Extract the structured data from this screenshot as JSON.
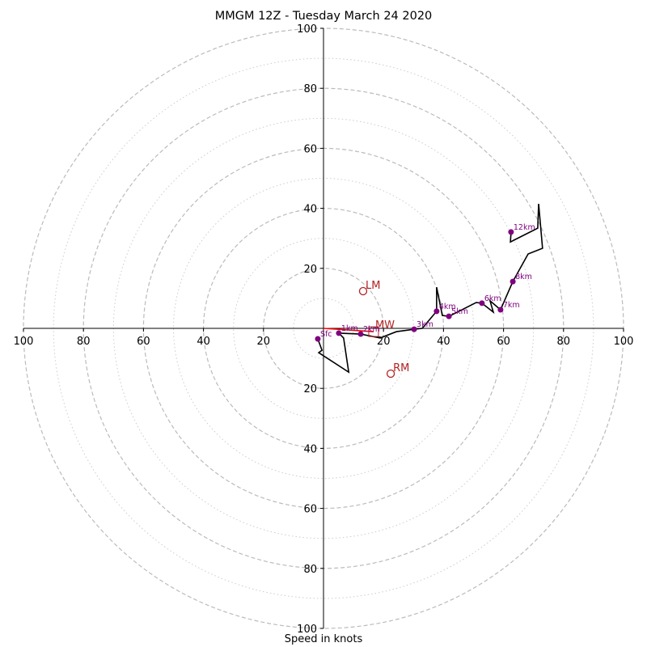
{
  "chart_data": {
    "type": "hodograph",
    "title": "MMGM 12Z - Tuesday March 24 2020",
    "xlabel": "Speed in knots",
    "range": [
      -100,
      100
    ],
    "ring_major": [
      20,
      40,
      60,
      80,
      100
    ],
    "ring_minor": [
      10,
      30,
      50,
      70,
      90
    ],
    "x_tick_labels": [
      "100",
      "80",
      "60",
      "40",
      "20",
      "20",
      "40",
      "60",
      "80",
      "100"
    ],
    "x_tick_values": [
      -100,
      -80,
      -60,
      -40,
      -20,
      20,
      40,
      60,
      80,
      100
    ],
    "y_tick_labels": [
      "100",
      "80",
      "60",
      "40",
      "20",
      "20",
      "40",
      "60",
      "80",
      "100"
    ],
    "y_tick_values": [
      100,
      80,
      60,
      40,
      20,
      -20,
      -40,
      -60,
      -80,
      -100
    ],
    "trace": [
      [
        -1.9,
        -3.5
      ],
      [
        -0.5,
        -7.3
      ],
      [
        -1.6,
        -8.1
      ],
      [
        8.4,
        -14.6
      ],
      [
        6.7,
        -3.2
      ],
      [
        5.1,
        -1.6
      ],
      [
        12.4,
        -1.9
      ],
      [
        18.9,
        -3.2
      ],
      [
        24.3,
        -1.1
      ],
      [
        30.2,
        -0.3
      ],
      [
        32.9,
        0
      ],
      [
        37.7,
        5.7
      ],
      [
        37.7,
        13.7
      ],
      [
        39.6,
        4.3
      ],
      [
        41.8,
        4.0
      ],
      [
        50.9,
        8.6
      ],
      [
        52.8,
        8.4
      ],
      [
        56.6,
        5.4
      ],
      [
        55.5,
        9.2
      ],
      [
        59.0,
        6.2
      ],
      [
        63.1,
        15.6
      ],
      [
        68.2,
        24.8
      ],
      [
        73.0,
        26.7
      ],
      [
        71.7,
        41.5
      ],
      [
        71.4,
        33.4
      ],
      [
        62.3,
        28.8
      ],
      [
        62.5,
        32.1
      ]
    ],
    "levels": [
      {
        "label": "Sfc",
        "x": -1.9,
        "y": -3.5
      },
      {
        "label": "1km",
        "x": 5.1,
        "y": -1.6
      },
      {
        "label": "2km",
        "x": 12.4,
        "y": -1.9
      },
      {
        "label": "3km",
        "x": 30.2,
        "y": -0.3
      },
      {
        "label": "4km",
        "x": 37.7,
        "y": 5.7
      },
      {
        "label": "5km",
        "x": 41.8,
        "y": 4.0
      },
      {
        "label": "6km",
        "x": 52.8,
        "y": 8.4
      },
      {
        "label": "7km",
        "x": 59.0,
        "y": 6.2
      },
      {
        "label": "8km",
        "x": 63.1,
        "y": 15.6
      },
      {
        "label": "12km",
        "x": 62.5,
        "y": 32.1
      }
    ],
    "motions": [
      {
        "label": "LM",
        "x": 13.2,
        "y": 12.4
      },
      {
        "label": "RM",
        "x": 22.4,
        "y": -15.1
      }
    ],
    "mean_wind": {
      "label": "MW",
      "x": 16.7,
      "y": -1.1
    },
    "colors": {
      "trace": "#000000",
      "levels": "#800080",
      "motion": "#b22222",
      "mean_wind": "#ff0000",
      "ring": "#bbbbbb"
    }
  }
}
